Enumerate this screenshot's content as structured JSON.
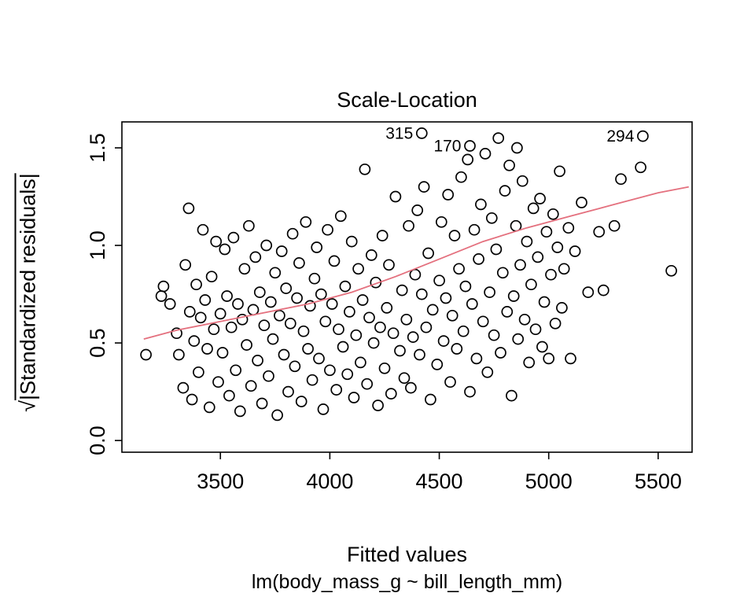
{
  "page": {
    "background": "#ffffff"
  },
  "chart_data": {
    "type": "scatter",
    "title": "Scale-Location",
    "xlabel": "Fitted values",
    "xlabel_sub": "lm(body_mass_g ~ bill_length_mm)",
    "ylabel_sqrt": "√",
    "ylabel_body": "|Standardized residuals|",
    "xlim": [
      3050,
      5655
    ],
    "ylim": [
      -0.06,
      1.633
    ],
    "x_ticks": [
      3500,
      4000,
      4500,
      5000,
      5500
    ],
    "y_ticks": [
      "0.0",
      "0.5",
      "1.0",
      "1.5"
    ],
    "grid": false,
    "legend": "none",
    "point_color": "#000000",
    "smooth_color": "#e4707e",
    "labeled_points": [
      {
        "label": "315",
        "x": 4420,
        "y": 1.575
      },
      {
        "label": "170",
        "x": 4640,
        "y": 1.51
      },
      {
        "label": "294",
        "x": 5430,
        "y": 1.56
      }
    ],
    "smooth_line": [
      [
        3150,
        0.52
      ],
      [
        3300,
        0.565
      ],
      [
        3500,
        0.61
      ],
      [
        3700,
        0.655
      ],
      [
        3900,
        0.7
      ],
      [
        4100,
        0.76
      ],
      [
        4300,
        0.84
      ],
      [
        4500,
        0.93
      ],
      [
        4700,
        1.02
      ],
      [
        4900,
        1.09
      ],
      [
        5100,
        1.15
      ],
      [
        5300,
        1.21
      ],
      [
        5500,
        1.27
      ],
      [
        5640,
        1.3
      ]
    ],
    "points": [
      [
        3160,
        0.44
      ],
      [
        3230,
        0.74
      ],
      [
        3240,
        0.79
      ],
      [
        3270,
        0.7
      ],
      [
        3300,
        0.55
      ],
      [
        3310,
        0.44
      ],
      [
        3330,
        0.27
      ],
      [
        3340,
        0.9
      ],
      [
        3355,
        1.19
      ],
      [
        3360,
        0.66
      ],
      [
        3370,
        0.21
      ],
      [
        3380,
        0.51
      ],
      [
        3390,
        0.8
      ],
      [
        3400,
        0.35
      ],
      [
        3410,
        0.63
      ],
      [
        3420,
        1.08
      ],
      [
        3430,
        0.72
      ],
      [
        3440,
        0.47
      ],
      [
        3450,
        0.17
      ],
      [
        3460,
        0.84
      ],
      [
        3470,
        0.57
      ],
      [
        3480,
        1.02
      ],
      [
        3490,
        0.3
      ],
      [
        3500,
        0.65
      ],
      [
        3510,
        0.45
      ],
      [
        3520,
        0.98
      ],
      [
        3530,
        0.74
      ],
      [
        3540,
        0.23
      ],
      [
        3550,
        0.58
      ],
      [
        3560,
        1.04
      ],
      [
        3570,
        0.36
      ],
      [
        3580,
        0.7
      ],
      [
        3590,
        0.15
      ],
      [
        3600,
        0.62
      ],
      [
        3610,
        0.88
      ],
      [
        3620,
        0.49
      ],
      [
        3630,
        1.1
      ],
      [
        3640,
        0.28
      ],
      [
        3650,
        0.67
      ],
      [
        3660,
        0.94
      ],
      [
        3670,
        0.41
      ],
      [
        3680,
        0.76
      ],
      [
        3690,
        0.19
      ],
      [
        3700,
        0.59
      ],
      [
        3710,
        1.0
      ],
      [
        3720,
        0.33
      ],
      [
        3730,
        0.71
      ],
      [
        3740,
        0.52
      ],
      [
        3750,
        0.86
      ],
      [
        3760,
        0.13
      ],
      [
        3770,
        0.64
      ],
      [
        3780,
        0.97
      ],
      [
        3790,
        0.44
      ],
      [
        3800,
        0.78
      ],
      [
        3810,
        0.25
      ],
      [
        3820,
        0.6
      ],
      [
        3830,
        1.06
      ],
      [
        3840,
        0.38
      ],
      [
        3850,
        0.73
      ],
      [
        3860,
        0.91
      ],
      [
        3870,
        0.2
      ],
      [
        3880,
        0.56
      ],
      [
        3890,
        1.12
      ],
      [
        3900,
        0.47
      ],
      [
        3910,
        0.69
      ],
      [
        3920,
        0.31
      ],
      [
        3930,
        0.83
      ],
      [
        3940,
        0.99
      ],
      [
        3950,
        0.42
      ],
      [
        3960,
        0.75
      ],
      [
        3970,
        0.16
      ],
      [
        3980,
        0.61
      ],
      [
        3990,
        1.08
      ],
      [
        4000,
        0.36
      ],
      [
        4010,
        0.7
      ],
      [
        4020,
        0.92
      ],
      [
        4030,
        0.26
      ],
      [
        4040,
        0.57
      ],
      [
        4050,
        1.15
      ],
      [
        4060,
        0.48
      ],
      [
        4070,
        0.79
      ],
      [
        4080,
        0.34
      ],
      [
        4090,
        0.66
      ],
      [
        4100,
        1.02
      ],
      [
        4110,
        0.22
      ],
      [
        4120,
        0.54
      ],
      [
        4130,
        0.88
      ],
      [
        4140,
        0.4
      ],
      [
        4150,
        0.72
      ],
      [
        4160,
        1.39
      ],
      [
        4170,
        0.29
      ],
      [
        4180,
        0.63
      ],
      [
        4190,
        0.95
      ],
      [
        4200,
        0.5
      ],
      [
        4210,
        0.81
      ],
      [
        4220,
        0.18
      ],
      [
        4230,
        0.58
      ],
      [
        4240,
        1.05
      ],
      [
        4250,
        0.37
      ],
      [
        4260,
        0.68
      ],
      [
        4270,
        0.9
      ],
      [
        4280,
        0.24
      ],
      [
        4290,
        0.55
      ],
      [
        4300,
        1.25
      ],
      [
        4320,
        0.46
      ],
      [
        4330,
        0.77
      ],
      [
        4340,
        0.32
      ],
      [
        4350,
        0.62
      ],
      [
        4360,
        1.1
      ],
      [
        4370,
        0.27
      ],
      [
        4380,
        0.53
      ],
      [
        4390,
        0.85
      ],
      [
        4400,
        1.18
      ],
      [
        4410,
        0.44
      ],
      [
        4420,
        0.75
      ],
      [
        4430,
        1.3
      ],
      [
        4440,
        0.58
      ],
      [
        4450,
        0.96
      ],
      [
        4460,
        0.21
      ],
      [
        4470,
        0.67
      ],
      [
        4490,
        0.39
      ],
      [
        4500,
        0.82
      ],
      [
        4510,
        1.12
      ],
      [
        4520,
        0.51
      ],
      [
        4530,
        0.73
      ],
      [
        4540,
        1.26
      ],
      [
        4550,
        0.3
      ],
      [
        4560,
        0.64
      ],
      [
        4570,
        1.05
      ],
      [
        4580,
        0.47
      ],
      [
        4590,
        0.88
      ],
      [
        4600,
        1.35
      ],
      [
        4610,
        0.56
      ],
      [
        4620,
        0.79
      ],
      [
        4630,
        1.44
      ],
      [
        4640,
        0.25
      ],
      [
        4650,
        0.7
      ],
      [
        4660,
        1.08
      ],
      [
        4670,
        0.42
      ],
      [
        4680,
        0.93
      ],
      [
        4690,
        1.21
      ],
      [
        4700,
        0.61
      ],
      [
        4710,
        1.47
      ],
      [
        4720,
        0.35
      ],
      [
        4730,
        0.76
      ],
      [
        4740,
        1.14
      ],
      [
        4750,
        0.54
      ],
      [
        4760,
        0.98
      ],
      [
        4770,
        1.55
      ],
      [
        4780,
        0.45
      ],
      [
        4790,
        0.86
      ],
      [
        4800,
        1.28
      ],
      [
        4810,
        0.66
      ],
      [
        4820,
        1.41
      ],
      [
        4830,
        0.23
      ],
      [
        4840,
        0.74
      ],
      [
        4850,
        1.1
      ],
      [
        4855,
        1.5
      ],
      [
        4860,
        0.52
      ],
      [
        4870,
        0.9
      ],
      [
        4880,
        1.33
      ],
      [
        4890,
        0.62
      ],
      [
        4900,
        1.02
      ],
      [
        4910,
        0.4
      ],
      [
        4920,
        0.8
      ],
      [
        4930,
        1.19
      ],
      [
        4940,
        0.57
      ],
      [
        4950,
        0.94
      ],
      [
        4960,
        1.24
      ],
      [
        4970,
        0.48
      ],
      [
        4980,
        0.71
      ],
      [
        4990,
        1.07
      ],
      [
        5000,
        0.42
      ],
      [
        5010,
        0.85
      ],
      [
        5020,
        1.16
      ],
      [
        5030,
        0.6
      ],
      [
        5040,
        0.99
      ],
      [
        5050,
        1.38
      ],
      [
        5060,
        0.68
      ],
      [
        5070,
        0.88
      ],
      [
        5090,
        1.09
      ],
      [
        5100,
        0.42
      ],
      [
        5120,
        0.97
      ],
      [
        5150,
        1.22
      ],
      [
        5180,
        0.76
      ],
      [
        5230,
        1.07
      ],
      [
        5250,
        0.77
      ],
      [
        5300,
        1.1
      ],
      [
        5330,
        1.34
      ],
      [
        5420,
        1.4
      ],
      [
        5560,
        0.87
      ]
    ]
  }
}
